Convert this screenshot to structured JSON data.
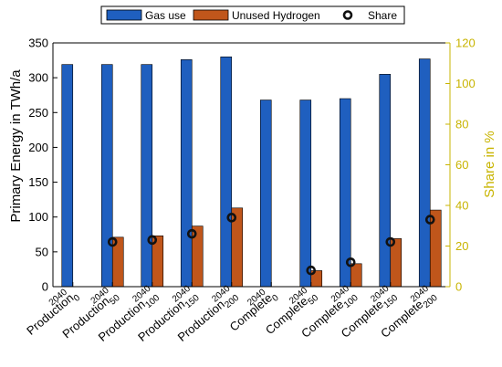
{
  "chart_data": {
    "type": "bar",
    "title": "",
    "ylabel": "Primary Energy in TWh/a",
    "y2label": "Share in %",
    "ylim": [
      0,
      350
    ],
    "y2lim": [
      0,
      120
    ],
    "yticks": [
      0,
      50,
      100,
      150,
      200,
      250,
      300,
      350
    ],
    "y2ticks": [
      0,
      20,
      40,
      60,
      80,
      100,
      120
    ],
    "categories": [
      {
        "base": "Production",
        "sup": "2040",
        "sub": "0"
      },
      {
        "base": "Production",
        "sup": "2040",
        "sub": "50"
      },
      {
        "base": "Production",
        "sup": "2040",
        "sub": "100"
      },
      {
        "base": "Production",
        "sup": "2040",
        "sub": "150"
      },
      {
        "base": "Production",
        "sup": "2040",
        "sub": "200"
      },
      {
        "base": "Complete",
        "sup": "2040",
        "sub": "0"
      },
      {
        "base": "Complete",
        "sup": "2040",
        "sub": "50"
      },
      {
        "base": "Complete",
        "sup": "2040",
        "sub": "100"
      },
      {
        "base": "Complete",
        "sup": "2040",
        "sub": "150"
      },
      {
        "base": "Complete",
        "sup": "2040",
        "sub": "200"
      }
    ],
    "series": [
      {
        "name": "Gas use",
        "type": "bar",
        "axis": "left",
        "color": "#1f5fbf",
        "values": [
          319,
          319,
          319,
          326,
          330,
          268,
          268,
          270,
          305,
          327
        ]
      },
      {
        "name": "Unused Hydrogen",
        "type": "bar",
        "axis": "left",
        "color": "#c0561b",
        "values": [
          0,
          71,
          73,
          87,
          113,
          0,
          23,
          33,
          69,
          110
        ]
      },
      {
        "name": "Share",
        "type": "scatter",
        "axis": "right",
        "color": "#111111",
        "values": [
          null,
          22,
          23,
          26,
          34,
          null,
          8,
          12,
          22,
          33
        ]
      }
    ],
    "legend_position": "top",
    "colors": {
      "left_axis": "#000000",
      "right_axis": "#c8b400"
    }
  }
}
